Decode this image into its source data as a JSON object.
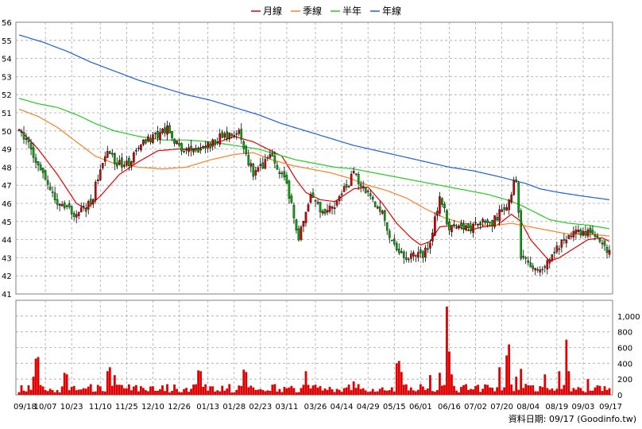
{
  "chart_data": {
    "type": "candlestick",
    "legend": [
      {
        "name": "月線",
        "color": "#e60000"
      },
      {
        "name": "季線",
        "color": "#ff7f27"
      },
      {
        "name": "半年",
        "color": "#22cc22"
      },
      {
        "name": "年線",
        "color": "#1f5fd6"
      }
    ],
    "footer": "資料日期: 09/17  (Goodinfo.tw)",
    "price_axis": {
      "min": 41,
      "max": 56,
      "ticks": [
        41,
        42,
        43,
        44,
        45,
        46,
        47,
        48,
        49,
        50,
        51,
        52,
        53,
        54,
        55,
        56
      ]
    },
    "volume_axis": {
      "min": 0,
      "max": 1200,
      "ticks": [
        0,
        200,
        400,
        600,
        800,
        1000
      ],
      "tick_labels": [
        "0",
        "200",
        "400",
        "600",
        "800",
        "1,000"
      ]
    },
    "x_labels": [
      "09/18",
      "10/07",
      "10/23",
      "11/10",
      "11/25",
      "12/10",
      "12/26",
      "01/13",
      "01/28",
      "02/23",
      "03/11",
      "03/26",
      "04/14",
      "04/29",
      "05/15",
      "06/01",
      "06/16",
      "07/02",
      "07/20",
      "08/04",
      "08/19",
      "09/03",
      "09/17"
    ],
    "n_days": 248,
    "close_anchors": [
      [
        0,
        50.2
      ],
      [
        8,
        48.1
      ],
      [
        16,
        46.0
      ],
      [
        24,
        45.4
      ],
      [
        30,
        46.0
      ],
      [
        36,
        48.8
      ],
      [
        44,
        48.0
      ],
      [
        52,
        49.3
      ],
      [
        62,
        50.2
      ],
      [
        68,
        48.8
      ],
      [
        76,
        49.0
      ],
      [
        84,
        49.6
      ],
      [
        92,
        49.8
      ],
      [
        98,
        47.6
      ],
      [
        106,
        48.6
      ],
      [
        112,
        47.0
      ],
      [
        117,
        44.0
      ],
      [
        122,
        46.3
      ],
      [
        128,
        45.3
      ],
      [
        134,
        46.3
      ],
      [
        140,
        47.6
      ],
      [
        146,
        46.6
      ],
      [
        152,
        45.5
      ],
      [
        156,
        43.9
      ],
      [
        162,
        43.0
      ],
      [
        168,
        43.1
      ],
      [
        172,
        43.7
      ],
      [
        176,
        46.4
      ],
      [
        180,
        44.6
      ],
      [
        186,
        44.5
      ],
      [
        192,
        44.9
      ],
      [
        198,
        44.9
      ],
      [
        204,
        46.0
      ],
      [
        208,
        47.4
      ],
      [
        210,
        43.2
      ],
      [
        216,
        42.2
      ],
      [
        222,
        42.9
      ],
      [
        226,
        43.6
      ],
      [
        230,
        44.2
      ],
      [
        236,
        44.4
      ],
      [
        242,
        44.1
      ],
      [
        247,
        43.2
      ]
    ],
    "ma_series": [
      {
        "name": "月線",
        "color": "#e60000",
        "points": [
          [
            0,
            50.1
          ],
          [
            8,
            49.0
          ],
          [
            16,
            47.6
          ],
          [
            24,
            46.0
          ],
          [
            28,
            45.7
          ],
          [
            34,
            46.4
          ],
          [
            42,
            47.6
          ],
          [
            50,
            48.3
          ],
          [
            58,
            48.9
          ],
          [
            66,
            49.0
          ],
          [
            74,
            49.0
          ],
          [
            82,
            49.3
          ],
          [
            90,
            49.7
          ],
          [
            98,
            49.4
          ],
          [
            104,
            49.0
          ],
          [
            110,
            48.6
          ],
          [
            116,
            47.3
          ],
          [
            120,
            46.6
          ],
          [
            126,
            46.2
          ],
          [
            132,
            46.1
          ],
          [
            140,
            46.8
          ],
          [
            146,
            46.9
          ],
          [
            152,
            46.0
          ],
          [
            158,
            44.9
          ],
          [
            164,
            44.1
          ],
          [
            168,
            43.7
          ],
          [
            172,
            43.9
          ],
          [
            176,
            44.7
          ],
          [
            182,
            44.8
          ],
          [
            188,
            44.5
          ],
          [
            194,
            44.7
          ],
          [
            200,
            44.8
          ],
          [
            206,
            45.4
          ],
          [
            210,
            45.0
          ],
          [
            214,
            44.0
          ],
          [
            218,
            43.4
          ],
          [
            222,
            42.8
          ],
          [
            226,
            43.0
          ],
          [
            232,
            43.5
          ],
          [
            238,
            44.0
          ],
          [
            244,
            44.1
          ],
          [
            247,
            43.9
          ]
        ]
      },
      {
        "name": "季線",
        "color": "#ff7f27",
        "points": [
          [
            0,
            51.2
          ],
          [
            8,
            50.8
          ],
          [
            16,
            50.2
          ],
          [
            24,
            49.4
          ],
          [
            32,
            48.6
          ],
          [
            40,
            48.2
          ],
          [
            50,
            48.0
          ],
          [
            60,
            47.9
          ],
          [
            70,
            48.0
          ],
          [
            80,
            48.4
          ],
          [
            90,
            48.7
          ],
          [
            98,
            48.8
          ],
          [
            106,
            48.4
          ],
          [
            114,
            48.1
          ],
          [
            122,
            47.9
          ],
          [
            130,
            47.7
          ],
          [
            138,
            47.4
          ],
          [
            146,
            47.0
          ],
          [
            154,
            46.7
          ],
          [
            162,
            46.3
          ],
          [
            170,
            45.7
          ],
          [
            178,
            45.2
          ],
          [
            186,
            44.9
          ],
          [
            194,
            44.8
          ],
          [
            200,
            44.8
          ],
          [
            206,
            44.9
          ],
          [
            214,
            44.7
          ],
          [
            222,
            44.5
          ],
          [
            230,
            44.3
          ],
          [
            238,
            44.3
          ],
          [
            247,
            44.2
          ]
        ]
      },
      {
        "name": "半年",
        "color": "#22cc22",
        "points": [
          [
            0,
            51.8
          ],
          [
            8,
            51.5
          ],
          [
            16,
            51.3
          ],
          [
            24,
            50.9
          ],
          [
            32,
            50.4
          ],
          [
            40,
            50.0
          ],
          [
            50,
            49.7
          ],
          [
            60,
            49.5
          ],
          [
            70,
            49.5
          ],
          [
            80,
            49.4
          ],
          [
            90,
            49.2
          ],
          [
            100,
            49.0
          ],
          [
            108,
            48.7
          ],
          [
            116,
            48.4
          ],
          [
            124,
            48.2
          ],
          [
            132,
            48.0
          ],
          [
            140,
            47.9
          ],
          [
            148,
            47.7
          ],
          [
            156,
            47.5
          ],
          [
            164,
            47.3
          ],
          [
            172,
            47.1
          ],
          [
            180,
            46.9
          ],
          [
            188,
            46.7
          ],
          [
            196,
            46.5
          ],
          [
            204,
            46.2
          ],
          [
            210,
            45.9
          ],
          [
            216,
            45.5
          ],
          [
            222,
            45.1
          ],
          [
            230,
            44.9
          ],
          [
            238,
            44.8
          ],
          [
            247,
            44.6
          ]
        ]
      },
      {
        "name": "年線",
        "color": "#1f5fd6",
        "points": [
          [
            0,
            55.3
          ],
          [
            10,
            54.9
          ],
          [
            20,
            54.4
          ],
          [
            30,
            53.8
          ],
          [
            40,
            53.3
          ],
          [
            50,
            52.8
          ],
          [
            60,
            52.4
          ],
          [
            70,
            52.0
          ],
          [
            80,
            51.7
          ],
          [
            90,
            51.3
          ],
          [
            100,
            50.9
          ],
          [
            110,
            50.4
          ],
          [
            120,
            50.0
          ],
          [
            130,
            49.6
          ],
          [
            140,
            49.2
          ],
          [
            150,
            48.9
          ],
          [
            160,
            48.6
          ],
          [
            170,
            48.3
          ],
          [
            180,
            48.0
          ],
          [
            190,
            47.8
          ],
          [
            200,
            47.5
          ],
          [
            206,
            47.3
          ],
          [
            212,
            47.1
          ],
          [
            218,
            46.8
          ],
          [
            226,
            46.6
          ],
          [
            236,
            46.4
          ],
          [
            247,
            46.2
          ]
        ]
      }
    ],
    "volume_spikes": [
      [
        6,
        230
      ],
      [
        7,
        460
      ],
      [
        8,
        480
      ],
      [
        19,
        280
      ],
      [
        20,
        260
      ],
      [
        37,
        300
      ],
      [
        38,
        350
      ],
      [
        40,
        250
      ],
      [
        75,
        310
      ],
      [
        76,
        300
      ],
      [
        94,
        320
      ],
      [
        95,
        290
      ],
      [
        120,
        300
      ],
      [
        140,
        170
      ],
      [
        158,
        400
      ],
      [
        159,
        430
      ],
      [
        160,
        290
      ],
      [
        172,
        250
      ],
      [
        176,
        280
      ],
      [
        179,
        1120
      ],
      [
        180,
        550
      ],
      [
        181,
        260
      ],
      [
        201,
        350
      ],
      [
        204,
        500
      ],
      [
        205,
        640
      ],
      [
        208,
        230
      ],
      [
        210,
        330
      ],
      [
        220,
        260
      ],
      [
        226,
        300
      ],
      [
        229,
        700
      ],
      [
        230,
        300
      ],
      [
        238,
        200
      ]
    ]
  }
}
